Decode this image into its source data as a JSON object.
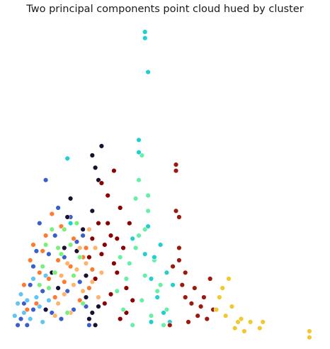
{
  "chart_data": {
    "type": "scatter",
    "title": "Two principal components point cloud hued by cluster",
    "xlabel": "",
    "ylabel": "",
    "axes_visible": false,
    "grid": false,
    "legend": "none",
    "xlim": [
      0,
      1
    ],
    "ylim": [
      0,
      1
    ],
    "series": [
      {
        "color": "#3a5fcd",
        "points": [
          [
            0.03,
            0.05
          ],
          [
            0.04,
            0.07
          ],
          [
            0.05,
            0.12
          ],
          [
            0.06,
            0.05
          ],
          [
            0.07,
            0.18
          ],
          [
            0.08,
            0.24
          ],
          [
            0.09,
            0.29
          ],
          [
            0.1,
            0.38
          ],
          [
            0.08,
            0.1
          ],
          [
            0.11,
            0.16
          ],
          [
            0.12,
            0.52
          ],
          [
            0.13,
            0.28
          ],
          [
            0.14,
            0.09
          ],
          [
            0.15,
            0.34
          ],
          [
            0.16,
            0.43
          ],
          [
            0.17,
            0.07
          ],
          [
            0.18,
            0.27
          ],
          [
            0.19,
            0.16
          ],
          [
            0.2,
            0.4
          ],
          [
            0.21,
            0.1
          ],
          [
            0.22,
            0.32
          ],
          [
            0.23,
            0.19
          ],
          [
            0.24,
            0.34
          ],
          [
            0.25,
            0.11
          ],
          [
            0.26,
            0.05
          ]
        ]
      },
      {
        "color": "#1a1030",
        "points": [
          [
            0.12,
            0.1
          ],
          [
            0.14,
            0.22
          ],
          [
            0.16,
            0.17
          ],
          [
            0.18,
            0.3
          ],
          [
            0.19,
            0.4
          ],
          [
            0.2,
            0.46
          ],
          [
            0.22,
            0.29
          ],
          [
            0.24,
            0.36
          ],
          [
            0.25,
            0.21
          ],
          [
            0.26,
            0.07
          ],
          [
            0.27,
            0.09
          ],
          [
            0.28,
            0.05
          ],
          [
            0.25,
            0.14
          ],
          [
            0.27,
            0.42
          ],
          [
            0.27,
            0.6
          ],
          [
            0.28,
            0.56
          ],
          [
            0.29,
            0.52
          ],
          [
            0.3,
            0.63
          ],
          [
            0.29,
            0.11
          ]
        ]
      },
      {
        "color": "#5fc5f2",
        "points": [
          [
            0.02,
            0.08
          ],
          [
            0.03,
            0.12
          ],
          [
            0.04,
            0.15
          ],
          [
            0.05,
            0.09
          ],
          [
            0.06,
            0.13
          ],
          [
            0.07,
            0.07
          ],
          [
            0.08,
            0.2
          ],
          [
            0.09,
            0.14
          ],
          [
            0.1,
            0.11
          ],
          [
            0.11,
            0.06
          ],
          [
            0.12,
            0.21
          ],
          [
            0.13,
            0.13
          ]
        ]
      },
      {
        "color": "#ff7a2f",
        "points": [
          [
            0.05,
            0.18
          ],
          [
            0.06,
            0.1
          ],
          [
            0.07,
            0.26
          ],
          [
            0.08,
            0.31
          ],
          [
            0.09,
            0.12
          ],
          [
            0.1,
            0.22
          ],
          [
            0.11,
            0.29
          ],
          [
            0.12,
            0.34
          ],
          [
            0.13,
            0.2
          ],
          [
            0.14,
            0.41
          ],
          [
            0.15,
            0.14
          ],
          [
            0.16,
            0.26
          ],
          [
            0.17,
            0.37
          ],
          [
            0.18,
            0.19
          ],
          [
            0.2,
            0.24
          ],
          [
            0.21,
            0.33
          ],
          [
            0.23,
            0.13
          ],
          [
            0.24,
            0.27
          ],
          [
            0.25,
            0.3
          ],
          [
            0.26,
            0.17
          ],
          [
            0.27,
            0.23
          ]
        ]
      },
      {
        "color": "#ffb36b",
        "points": [
          [
            0.15,
            0.08
          ],
          [
            0.16,
            0.12
          ],
          [
            0.17,
            0.21
          ],
          [
            0.18,
            0.15
          ],
          [
            0.19,
            0.25
          ],
          [
            0.2,
            0.09
          ],
          [
            0.21,
            0.18
          ],
          [
            0.22,
            0.23
          ],
          [
            0.23,
            0.3
          ],
          [
            0.24,
            0.16
          ],
          [
            0.25,
            0.25
          ],
          [
            0.26,
            0.36
          ],
          [
            0.27,
            0.19
          ],
          [
            0.28,
            0.3
          ],
          [
            0.29,
            0.14
          ],
          [
            0.3,
            0.22
          ]
        ]
      },
      {
        "color": "#78f07a",
        "points": [
          [
            0.1,
            0.18
          ],
          [
            0.11,
            0.24
          ],
          [
            0.12,
            0.31
          ],
          [
            0.13,
            0.17
          ],
          [
            0.14,
            0.36
          ],
          [
            0.15,
            0.22
          ],
          [
            0.16,
            0.3
          ],
          [
            0.17,
            0.28
          ],
          [
            0.18,
            0.36
          ],
          [
            0.19,
            0.09
          ],
          [
            0.2,
            0.31
          ],
          [
            0.21,
            0.21
          ],
          [
            0.22,
            0.38
          ],
          [
            0.23,
            0.27
          ],
          [
            0.24,
            0.12
          ]
        ]
      },
      {
        "color": "#8b0000",
        "points": [
          [
            0.26,
            0.27
          ],
          [
            0.27,
            0.33
          ],
          [
            0.28,
            0.2
          ],
          [
            0.29,
            0.38
          ],
          [
            0.3,
            0.28
          ],
          [
            0.31,
            0.12
          ],
          [
            0.32,
            0.47
          ],
          [
            0.33,
            0.34
          ],
          [
            0.34,
            0.55
          ],
          [
            0.35,
            0.22
          ],
          [
            0.36,
            0.43
          ],
          [
            0.37,
            0.3
          ],
          [
            0.38,
            0.17
          ],
          [
            0.39,
            0.38
          ],
          [
            0.4,
            0.13
          ],
          [
            0.38,
            0.09
          ],
          [
            0.35,
            0.33
          ],
          [
            0.34,
            0.25
          ],
          [
            0.31,
            0.31
          ],
          [
            0.3,
            0.51
          ],
          [
            0.32,
            0.38
          ],
          [
            0.36,
            0.07
          ],
          [
            0.33,
            0.15
          ]
        ]
      },
      {
        "color": "#66f0a6",
        "points": [
          [
            0.35,
            0.16
          ],
          [
            0.36,
            0.27
          ],
          [
            0.37,
            0.1
          ],
          [
            0.38,
            0.2
          ],
          [
            0.39,
            0.25
          ],
          [
            0.4,
            0.05
          ],
          [
            0.41,
            0.3
          ],
          [
            0.42,
            0.34
          ],
          [
            0.43,
            0.13
          ],
          [
            0.44,
            0.21
          ],
          [
            0.45,
            0.42
          ],
          [
            0.46,
            0.08
          ],
          [
            0.47,
            0.26
          ],
          [
            0.48,
            0.16
          ],
          [
            0.49,
            0.18
          ],
          [
            0.5,
            0.05
          ],
          [
            0.51,
            0.1
          ],
          [
            0.42,
            0.52
          ],
          [
            0.43,
            0.6
          ],
          [
            0.44,
            0.36
          ],
          [
            0.45,
            0.47
          ],
          [
            0.41,
            0.46
          ]
        ]
      },
      {
        "color": "#22cfcf",
        "points": [
          [
            0.19,
            0.59
          ],
          [
            0.2,
            0.38
          ],
          [
            0.4,
            0.33
          ],
          [
            0.42,
            0.65
          ],
          [
            0.44,
            0.28
          ],
          [
            0.45,
            0.37
          ],
          [
            0.46,
            0.2
          ],
          [
            0.47,
            0.27
          ],
          [
            0.48,
            0.14
          ],
          [
            0.49,
            0.31
          ],
          [
            0.5,
            0.09
          ],
          [
            0.51,
            0.22
          ],
          [
            0.52,
            0.06
          ],
          [
            0.53,
            0.18
          ],
          [
            0.46,
            0.06
          ],
          [
            0.44,
            1.0
          ],
          [
            0.44,
            0.98
          ],
          [
            0.45,
            0.87
          ],
          [
            0.42,
            0.61
          ]
        ]
      },
      {
        "color": "#9a1a10",
        "points": [
          [
            0.52,
            0.05
          ],
          [
            0.53,
            0.24
          ],
          [
            0.54,
            0.57
          ],
          [
            0.54,
            0.55
          ],
          [
            0.55,
            0.3
          ],
          [
            0.56,
            0.18
          ],
          [
            0.57,
            0.22
          ],
          [
            0.58,
            0.06
          ],
          [
            0.59,
            0.12
          ],
          [
            0.6,
            0.17
          ],
          [
            0.61,
            0.08
          ],
          [
            0.62,
            0.11
          ],
          [
            0.63,
            0.14
          ],
          [
            0.64,
            0.07
          ],
          [
            0.65,
            0.2
          ],
          [
            0.66,
            0.1
          ],
          [
            0.55,
            0.4
          ],
          [
            0.54,
            0.42
          ],
          [
            0.57,
            0.14
          ],
          [
            0.55,
            0.26
          ]
        ]
      },
      {
        "color": "#f0c830",
        "points": [
          [
            0.67,
            0.1
          ],
          [
            0.68,
            0.14
          ],
          [
            0.69,
            0.17
          ],
          [
            0.7,
            0.08
          ],
          [
            0.71,
            0.2
          ],
          [
            0.72,
            0.11
          ],
          [
            0.73,
            0.04
          ],
          [
            0.74,
            0.06
          ],
          [
            0.75,
            0.07
          ],
          [
            0.76,
            0.03
          ],
          [
            0.78,
            0.06
          ],
          [
            0.81,
            0.04
          ],
          [
            0.82,
            0.06
          ],
          [
            0.97,
            0.03
          ],
          [
            0.97,
            0.01
          ]
        ]
      }
    ]
  }
}
